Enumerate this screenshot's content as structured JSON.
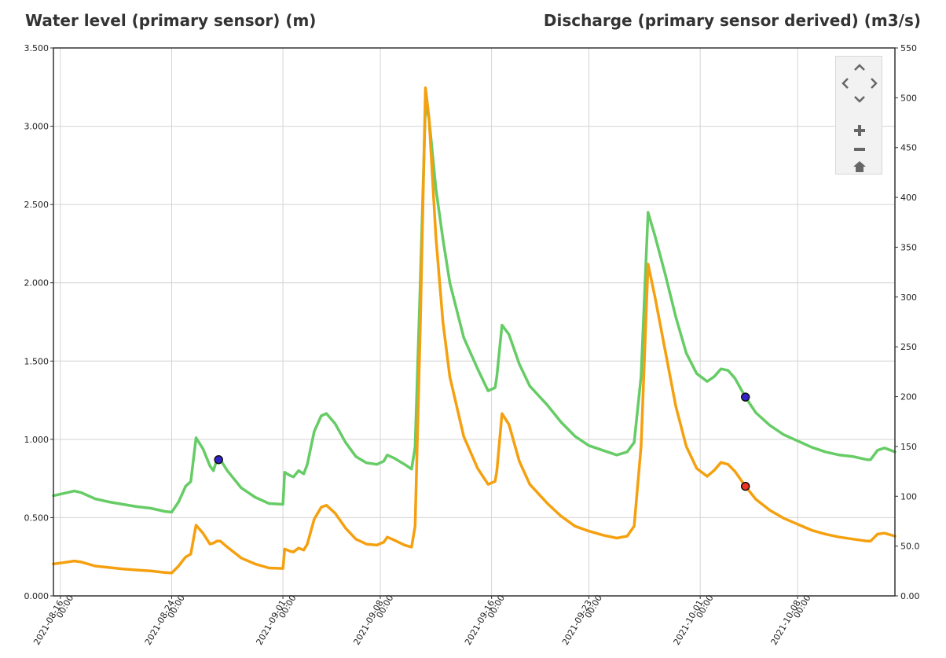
{
  "axis_titles": {
    "left": "Water level (primary sensor) (m)",
    "right": "Discharge (primary sensor derived) (m3/s)"
  },
  "chart_data": {
    "type": "line",
    "left_axis": {
      "label": "Water level (primary sensor) (m)",
      "range": [
        0,
        3.5
      ],
      "ticks": [
        "0.000",
        "0.500",
        "1.000",
        "1.500",
        "2.000",
        "2.500",
        "3.000",
        "3.500"
      ]
    },
    "right_axis": {
      "label": "Discharge (primary sensor derived) (m3/s)",
      "range": [
        0,
        550
      ],
      "ticks": [
        "0.00",
        "50.0",
        "100",
        "150",
        "200",
        "250",
        "300",
        "350",
        "400",
        "450",
        "500",
        "550"
      ]
    },
    "x_axis": {
      "range_days": [
        "2021-08-15 12:00",
        "2021-10-15 00:00"
      ],
      "ticks": [
        {
          "date": "2021-08-16",
          "time": "00:00"
        },
        {
          "date": "2021-08-24",
          "time": "00:00"
        },
        {
          "date": "2021-09-01",
          "time": "00:00"
        },
        {
          "date": "2021-09-08",
          "time": "00:00"
        },
        {
          "date": "2021-09-16",
          "time": "00:00"
        },
        {
          "date": "2021-09-23",
          "time": "00:00"
        },
        {
          "date": "2021-10-01",
          "time": "00:00"
        },
        {
          "date": "2021-10-08",
          "time": "00:00"
        }
      ]
    },
    "grid": true,
    "series": [
      {
        "color": "#66cc66",
        "axis": "left",
        "points": [
          [
            "2021-08-15 12:00",
            0.64
          ],
          [
            "2021-08-16 00:00",
            0.65
          ],
          [
            "2021-08-17 00:00",
            0.67
          ],
          [
            "2021-08-17 12:00",
            0.66
          ],
          [
            "2021-08-18 12:00",
            0.62
          ],
          [
            "2021-08-19 12:00",
            0.6
          ],
          [
            "2021-08-20 12:00",
            0.585
          ],
          [
            "2021-08-21 12:00",
            0.57
          ],
          [
            "2021-08-22 12:00",
            0.56
          ],
          [
            "2021-08-23 12:00",
            0.54
          ],
          [
            "2021-08-24 00:00",
            0.535
          ],
          [
            "2021-08-24 12:00",
            0.6
          ],
          [
            "2021-08-25 00:00",
            0.7
          ],
          [
            "2021-08-25 09:00",
            0.73
          ],
          [
            "2021-08-25 18:00",
            1.01
          ],
          [
            "2021-08-26 06:00",
            0.94
          ],
          [
            "2021-08-26 18:00",
            0.83
          ],
          [
            "2021-08-27 00:00",
            0.8
          ],
          [
            "2021-08-27 06:00",
            0.87
          ],
          [
            "2021-08-27 12:00",
            0.87
          ],
          [
            "2021-08-28 00:00",
            0.8
          ],
          [
            "2021-08-29 00:00",
            0.69
          ],
          [
            "2021-08-30 00:00",
            0.63
          ],
          [
            "2021-08-31 00:00",
            0.59
          ],
          [
            "2021-09-01 00:00",
            0.585
          ],
          [
            "2021-09-01 03:00",
            0.79
          ],
          [
            "2021-09-01 12:00",
            0.77
          ],
          [
            "2021-09-01 18:00",
            0.76
          ],
          [
            "2021-09-02 03:00",
            0.8
          ],
          [
            "2021-09-02 12:00",
            0.78
          ],
          [
            "2021-09-02 18:00",
            0.84
          ],
          [
            "2021-09-03 06:00",
            1.05
          ],
          [
            "2021-09-03 18:00",
            1.15
          ],
          [
            "2021-09-04 03:00",
            1.165
          ],
          [
            "2021-09-04 18:00",
            1.1
          ],
          [
            "2021-09-05 12:00",
            0.98
          ],
          [
            "2021-09-06 06:00",
            0.89
          ],
          [
            "2021-09-07 00:00",
            0.85
          ],
          [
            "2021-09-07 18:00",
            0.84
          ],
          [
            "2021-09-08 06:00",
            0.86
          ],
          [
            "2021-09-08 12:00",
            0.9
          ],
          [
            "2021-09-09 00:00",
            0.88
          ],
          [
            "2021-09-09 18:00",
            0.84
          ],
          [
            "2021-09-10 06:00",
            0.81
          ],
          [
            "2021-09-10 12:00",
            0.95
          ],
          [
            "2021-09-10 21:00",
            2.0
          ],
          [
            "2021-09-11 06:00",
            3.14
          ],
          [
            "2021-09-11 12:00",
            3.05
          ],
          [
            "2021-09-12 00:00",
            2.6
          ],
          [
            "2021-09-12 12:00",
            2.28
          ],
          [
            "2021-09-13 00:00",
            2.0
          ],
          [
            "2021-09-14 00:00",
            1.65
          ],
          [
            "2021-09-15 00:00",
            1.45
          ],
          [
            "2021-09-15 18:00",
            1.31
          ],
          [
            "2021-09-16 06:00",
            1.33
          ],
          [
            "2021-09-16 09:00",
            1.4
          ],
          [
            "2021-09-16 18:00",
            1.73
          ],
          [
            "2021-09-17 06:00",
            1.67
          ],
          [
            "2021-09-18 00:00",
            1.48
          ],
          [
            "2021-09-18 18:00",
            1.34
          ],
          [
            "2021-09-20 00:00",
            1.22
          ],
          [
            "2021-09-21 00:00",
            1.11
          ],
          [
            "2021-09-22 00:00",
            1.02
          ],
          [
            "2021-09-23 00:00",
            0.96
          ],
          [
            "2021-09-24 00:00",
            0.93
          ],
          [
            "2021-09-25 00:00",
            0.9
          ],
          [
            "2021-09-25 18:00",
            0.92
          ],
          [
            "2021-09-26 06:00",
            0.98
          ],
          [
            "2021-09-26 18:00",
            1.4
          ],
          [
            "2021-09-27 06:00",
            2.45
          ],
          [
            "2021-09-27 18:00",
            2.3
          ],
          [
            "2021-09-28 12:00",
            2.05
          ],
          [
            "2021-09-29 06:00",
            1.78
          ],
          [
            "2021-09-30 00:00",
            1.55
          ],
          [
            "2021-09-30 18:00",
            1.42
          ],
          [
            "2021-10-01 12:00",
            1.37
          ],
          [
            "2021-10-02 00:00",
            1.4
          ],
          [
            "2021-10-02 12:00",
            1.45
          ],
          [
            "2021-10-03 00:00",
            1.44
          ],
          [
            "2021-10-03 12:00",
            1.39
          ],
          [
            "2021-10-04 06:00",
            1.27
          ],
          [
            "2021-10-05 00:00",
            1.17
          ],
          [
            "2021-10-06 00:00",
            1.09
          ],
          [
            "2021-10-07 00:00",
            1.03
          ],
          [
            "2021-10-08 00:00",
            0.99
          ],
          [
            "2021-10-09 00:00",
            0.95
          ],
          [
            "2021-10-10 00:00",
            0.92
          ],
          [
            "2021-10-11 00:00",
            0.9
          ],
          [
            "2021-10-12 00:00",
            0.89
          ],
          [
            "2021-10-13 00:00",
            0.87
          ],
          [
            "2021-10-13 06:00",
            0.87
          ],
          [
            "2021-10-13 18:00",
            0.93
          ],
          [
            "2021-10-14 06:00",
            0.945
          ],
          [
            "2021-10-15 00:00",
            0.92
          ]
        ]
      },
      {
        "color": "#f5a00f",
        "axis": "right",
        "points": [
          [
            "2021-08-15 12:00",
            32
          ],
          [
            "2021-08-16 00:00",
            33
          ],
          [
            "2021-08-17 00:00",
            35
          ],
          [
            "2021-08-17 12:00",
            34
          ],
          [
            "2021-08-18 12:00",
            30
          ],
          [
            "2021-08-19 12:00",
            28.5
          ],
          [
            "2021-08-20 12:00",
            27
          ],
          [
            "2021-08-21 12:00",
            26
          ],
          [
            "2021-08-22 12:00",
            25
          ],
          [
            "2021-08-23 12:00",
            23.5
          ],
          [
            "2021-08-24 00:00",
            23
          ],
          [
            "2021-08-24 12:00",
            30
          ],
          [
            "2021-08-25 00:00",
            39
          ],
          [
            "2021-08-25 09:00",
            42
          ],
          [
            "2021-08-25 18:00",
            71
          ],
          [
            "2021-08-26 06:00",
            63
          ],
          [
            "2021-08-26 18:00",
            52
          ],
          [
            "2021-08-27 00:00",
            53
          ],
          [
            "2021-08-27 06:00",
            55
          ],
          [
            "2021-08-27 12:00",
            55
          ],
          [
            "2021-08-28 00:00",
            49
          ],
          [
            "2021-08-29 00:00",
            38
          ],
          [
            "2021-08-30 00:00",
            32
          ],
          [
            "2021-08-31 00:00",
            28
          ],
          [
            "2021-09-01 00:00",
            27.5
          ],
          [
            "2021-09-01 03:00",
            47
          ],
          [
            "2021-09-01 12:00",
            45
          ],
          [
            "2021-09-01 18:00",
            44
          ],
          [
            "2021-09-02 03:00",
            48
          ],
          [
            "2021-09-02 12:00",
            46
          ],
          [
            "2021-09-02 18:00",
            52
          ],
          [
            "2021-09-03 06:00",
            77
          ],
          [
            "2021-09-03 18:00",
            89
          ],
          [
            "2021-09-04 03:00",
            91
          ],
          [
            "2021-09-04 18:00",
            83
          ],
          [
            "2021-09-05 12:00",
            68
          ],
          [
            "2021-09-06 06:00",
            57
          ],
          [
            "2021-09-07 00:00",
            52
          ],
          [
            "2021-09-07 18:00",
            51
          ],
          [
            "2021-09-08 06:00",
            54
          ],
          [
            "2021-09-08 12:00",
            59
          ],
          [
            "2021-09-09 00:00",
            56
          ],
          [
            "2021-09-09 18:00",
            51
          ],
          [
            "2021-09-10 06:00",
            49
          ],
          [
            "2021-09-10 12:00",
            70
          ],
          [
            "2021-09-10 21:00",
            270
          ],
          [
            "2021-09-11 06:00",
            510
          ],
          [
            "2021-09-11 12:00",
            480
          ],
          [
            "2021-09-12 00:00",
            360
          ],
          [
            "2021-09-12 12:00",
            275
          ],
          [
            "2021-09-13 00:00",
            220
          ],
          [
            "2021-09-14 00:00",
            160
          ],
          [
            "2021-09-15 00:00",
            128
          ],
          [
            "2021-09-15 18:00",
            112
          ],
          [
            "2021-09-16 06:00",
            115
          ],
          [
            "2021-09-16 09:00",
            125
          ],
          [
            "2021-09-16 18:00",
            183
          ],
          [
            "2021-09-17 06:00",
            172
          ],
          [
            "2021-09-18 00:00",
            135
          ],
          [
            "2021-09-18 18:00",
            112
          ],
          [
            "2021-09-20 00:00",
            93
          ],
          [
            "2021-09-21 00:00",
            80
          ],
          [
            "2021-09-22 00:00",
            70
          ],
          [
            "2021-09-23 00:00",
            65
          ],
          [
            "2021-09-24 00:00",
            61
          ],
          [
            "2021-09-25 00:00",
            58
          ],
          [
            "2021-09-25 18:00",
            60
          ],
          [
            "2021-09-26 06:00",
            70
          ],
          [
            "2021-09-26 18:00",
            150
          ],
          [
            "2021-09-27 06:00",
            333
          ],
          [
            "2021-09-27 18:00",
            300
          ],
          [
            "2021-09-28 12:00",
            245
          ],
          [
            "2021-09-29 06:00",
            190
          ],
          [
            "2021-09-30 00:00",
            150
          ],
          [
            "2021-09-30 18:00",
            128
          ],
          [
            "2021-10-01 12:00",
            120
          ],
          [
            "2021-10-02 00:00",
            126
          ],
          [
            "2021-10-02 12:00",
            134
          ],
          [
            "2021-10-03 00:00",
            132
          ],
          [
            "2021-10-03 12:00",
            125
          ],
          [
            "2021-10-04 06:00",
            110
          ],
          [
            "2021-10-05 00:00",
            97
          ],
          [
            "2021-10-06 00:00",
            86
          ],
          [
            "2021-10-07 00:00",
            78
          ],
          [
            "2021-10-08 00:00",
            72
          ],
          [
            "2021-10-09 00:00",
            66
          ],
          [
            "2021-10-10 00:00",
            62
          ],
          [
            "2021-10-11 00:00",
            59
          ],
          [
            "2021-10-12 00:00",
            57
          ],
          [
            "2021-10-13 00:00",
            55
          ],
          [
            "2021-10-13 06:00",
            55
          ],
          [
            "2021-10-13 18:00",
            62
          ],
          [
            "2021-10-14 06:00",
            63
          ],
          [
            "2021-10-15 00:00",
            60
          ]
        ]
      }
    ],
    "markers": [
      {
        "series": 0,
        "x": "2021-08-27 09:00",
        "y": 0.87,
        "fill": "#3322cc"
      },
      {
        "series": 0,
        "x": "2021-10-04 06:00",
        "y": 1.27,
        "fill": "#3322cc"
      },
      {
        "series": 1,
        "x": "2021-10-04 06:00",
        "y": 110,
        "fill": "#ee3322"
      }
    ]
  },
  "navigation": {
    "icons": [
      "pan-up-icon",
      "pan-left-icon",
      "pan-right-icon",
      "pan-down-icon",
      "zoom-in-icon",
      "zoom-out-icon",
      "home-icon"
    ],
    "icon_color": "#666666"
  }
}
